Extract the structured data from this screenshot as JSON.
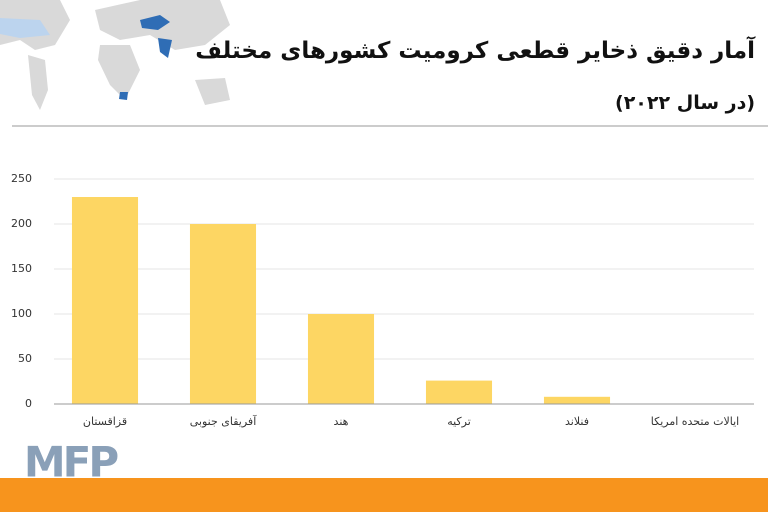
{
  "chart_data": {
    "type": "bar",
    "title": "آمار دقیق ذخایر قطعی کرومیت کشورهای مختلف",
    "subtitle": "(در سال ۲۰۲۲)",
    "categories": [
      "قزاقستان",
      "آفریقای جنوبی",
      "هند",
      "ترکیه",
      "فنلاند",
      "ایالات متحده امریکا"
    ],
    "values": [
      230,
      200,
      100,
      26,
      8,
      0
    ],
    "color": "#fdd663",
    "ylim": [
      0,
      250
    ],
    "yticks": [
      0,
      50,
      100,
      150,
      200,
      250
    ],
    "grid": true
  },
  "logo": "MFP"
}
